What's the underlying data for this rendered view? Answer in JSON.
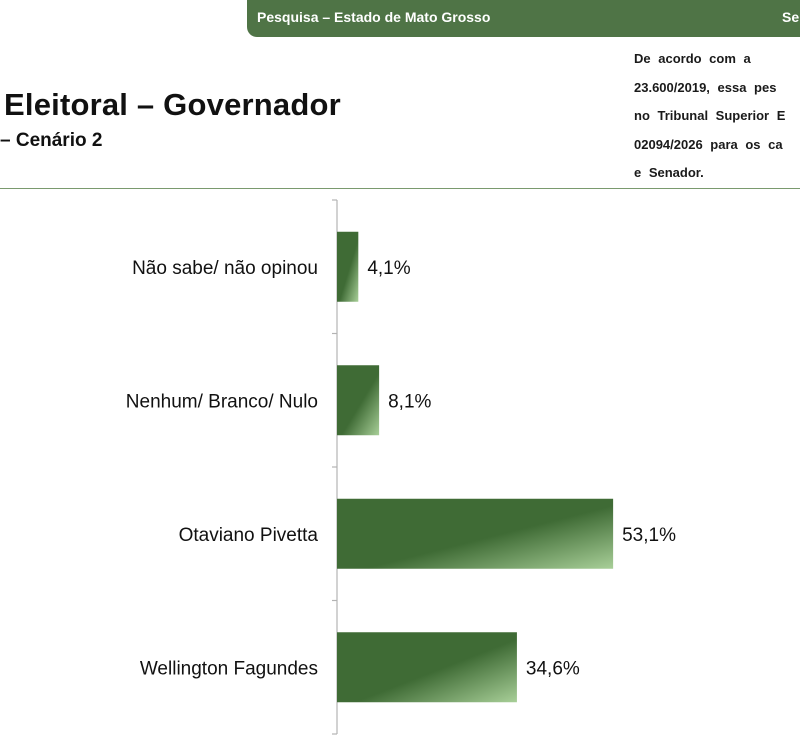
{
  "header": {
    "banner_title": "Pesquisa – Estado de Mato Grosso",
    "banner_right": "Se",
    "title": "Eleitoral – Governador",
    "subtitle": "– Cenário 2",
    "notice_lines": [
      "De acordo com a",
      "23.600/2019, essa pes",
      "no Tribunal Superior E",
      "02094/2026 para os ca",
      "e Senador."
    ]
  },
  "colors": {
    "banner": "#4f7446",
    "bar_dark": "#3f6b35",
    "bar_light": "#a8cf98",
    "divider": "#7a9a6e"
  },
  "chart_data": {
    "type": "bar",
    "orientation": "horizontal",
    "categories": [
      "Não sabe/ não opinou",
      "Nenhum/ Branco/ Nulo",
      "Otaviano Pivetta",
      "Wellington Fagundes"
    ],
    "values": [
      4.1,
      8.1,
      53.1,
      34.6
    ],
    "value_labels": [
      "4,1%",
      "8,1%",
      "53,1%",
      "34,6%"
    ],
    "unit": "%",
    "xlim": [
      0,
      100
    ],
    "grid": false,
    "legend": "none"
  }
}
